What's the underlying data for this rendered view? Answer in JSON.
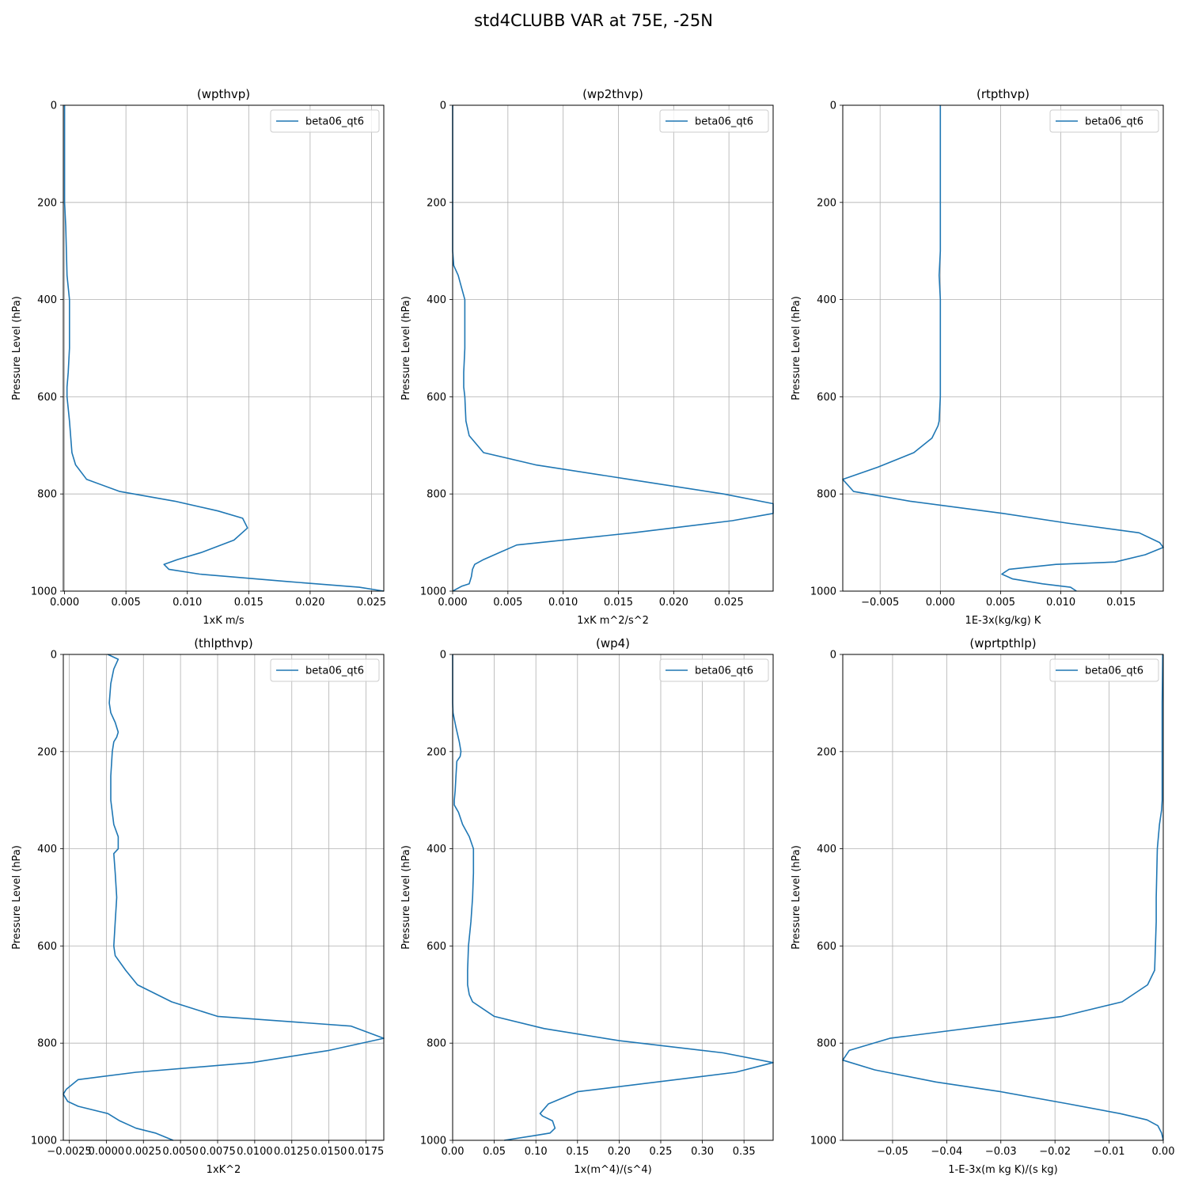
{
  "suptitle": "std4CLUBB VAR at 75E, -25N",
  "chart_data": [
    {
      "type": "line",
      "title": "(wpthvp)",
      "xlabel": "1xK m/s",
      "ylabel": "Pressure Level (hPa)",
      "xlim": [
        -0.0001,
        0.026
      ],
      "ylim": [
        1000,
        0
      ],
      "xticks": [
        0.0,
        0.005,
        0.01,
        0.015,
        0.02,
        0.025
      ],
      "xtick_labels": [
        "0.000",
        "0.005",
        "0.010",
        "0.015",
        "0.020",
        "0.025"
      ],
      "yticks": [
        0,
        200,
        400,
        600,
        800,
        1000
      ],
      "ytick_labels": [
        "0",
        "200",
        "400",
        "600",
        "800",
        "1000"
      ],
      "grid": true,
      "legend_position": "top-right",
      "series": [
        {
          "name": "beta06_qt6",
          "color": "#1f77b4",
          "x": [
            0.0,
            0.0,
            0.0,
            0.0,
            0.0,
            0.0001,
            0.0002,
            0.0004,
            0.0004,
            0.0004,
            0.0003,
            0.0002,
            0.0002,
            0.0004,
            0.0006,
            0.0009,
            0.0018,
            0.0045,
            0.009,
            0.0125,
            0.0145,
            0.0149,
            0.0138,
            0.0112,
            0.0092,
            0.0081,
            0.0085,
            0.011,
            0.018,
            0.024,
            0.026
          ],
          "y": [
            0,
            50,
            100,
            150,
            200,
            250,
            350,
            400,
            450,
            500,
            550,
            580,
            600,
            650,
            715,
            740,
            770,
            795,
            815,
            835,
            850,
            870,
            895,
            920,
            935,
            945,
            955,
            965,
            980,
            992,
            1000
          ]
        }
      ]
    },
    {
      "type": "line",
      "title": "(wp2thvp)",
      "xlabel": "1xK m^2/s^2",
      "ylabel": "Pressure Level (hPa)",
      "xlim": [
        0.0,
        0.029
      ],
      "ylim": [
        1000,
        0
      ],
      "xticks": [
        0.0,
        0.005,
        0.01,
        0.015,
        0.02,
        0.025
      ],
      "xtick_labels": [
        "0.000",
        "0.005",
        "0.010",
        "0.015",
        "0.020",
        "0.025"
      ],
      "yticks": [
        0,
        200,
        400,
        600,
        800,
        1000
      ],
      "ytick_labels": [
        "0",
        "200",
        "400",
        "600",
        "800",
        "1000"
      ],
      "grid": true,
      "legend_position": "top-right",
      "series": [
        {
          "name": "beta06_qt6",
          "color": "#1f77b4",
          "x": [
            0.0,
            0.0,
            0.0,
            0.0,
            0.0,
            0.0001,
            0.0005,
            0.0008,
            0.0011,
            0.0011,
            0.001,
            0.001,
            0.0011,
            0.0012,
            0.0015,
            0.0028,
            0.0075,
            0.016,
            0.0245,
            0.029,
            0.029,
            0.0253,
            0.0163,
            0.0058,
            0.0028,
            0.002,
            0.0018,
            0.0017,
            0.0015,
            0.0008,
            0.0
          ],
          "y": [
            0,
            100,
            200,
            250,
            300,
            330,
            350,
            375,
            400,
            500,
            550,
            580,
            600,
            650,
            680,
            715,
            740,
            770,
            800,
            820,
            840,
            855,
            880,
            905,
            935,
            945,
            955,
            970,
            985,
            990,
            1000
          ]
        }
      ]
    },
    {
      "type": "line",
      "title": "(rtpthvp)",
      "xlabel": "1E-3x(kg/kg) K",
      "ylabel": "Pressure Level (hPa)",
      "xlim": [
        -0.0081,
        0.0185
      ],
      "ylim": [
        1000,
        0
      ],
      "xticks": [
        -0.005,
        0.0,
        0.005,
        0.01,
        0.015
      ],
      "xtick_labels": [
        "−0.005",
        "0.000",
        "0.005",
        "0.010",
        "0.015"
      ],
      "yticks": [
        0,
        200,
        400,
        600,
        800,
        1000
      ],
      "ytick_labels": [
        "0",
        "200",
        "400",
        "600",
        "800",
        "1000"
      ],
      "grid": true,
      "legend_position": "top-right",
      "series": [
        {
          "name": "beta06_qt6",
          "color": "#1f77b4",
          "x": [
            0.0,
            0.0,
            0.0,
            0.0,
            -0.0001,
            0.0,
            0.0,
            0.0,
            -0.0001,
            -0.0002,
            -0.0007,
            -0.0022,
            -0.0052,
            -0.0081,
            -0.0072,
            -0.0025,
            0.0052,
            0.0105,
            0.0165,
            0.0182,
            0.0185,
            0.017,
            0.0145,
            0.0096,
            0.0057,
            0.0051,
            0.006,
            0.0085,
            0.0108,
            0.0113
          ],
          "y": [
            0,
            100,
            200,
            300,
            350,
            400,
            500,
            600,
            650,
            660,
            685,
            715,
            745,
            770,
            795,
            815,
            840,
            860,
            880,
            900,
            910,
            925,
            940,
            945,
            955,
            965,
            975,
            985,
            992,
            1000
          ]
        }
      ]
    },
    {
      "type": "line",
      "title": "(thlpthvp)",
      "xlabel": "1xK^2",
      "ylabel": "Pressure Level (hPa)",
      "xlim": [
        -0.0029,
        0.0187
      ],
      "ylim": [
        1000,
        0
      ],
      "xticks": [
        -0.0025,
        0.0,
        0.0025,
        0.005,
        0.0075,
        0.01,
        0.0125,
        0.015,
        0.0175
      ],
      "xtick_labels": [
        "−0.0025",
        "0.0000",
        "0.0025",
        "0.0050",
        "0.0075",
        "0.0100",
        "0.0125",
        "0.0150",
        "0.0175"
      ],
      "yticks": [
        0,
        200,
        400,
        600,
        800,
        1000
      ],
      "ytick_labels": [
        "0",
        "200",
        "400",
        "600",
        "800",
        "1000"
      ],
      "grid": true,
      "legend_position": "top-right",
      "series": [
        {
          "name": "beta06_qt6",
          "color": "#1f77b4",
          "x": [
            0.0001,
            0.0008,
            0.0005,
            0.0003,
            0.0002,
            0.0003,
            0.0006,
            0.0008,
            0.0007,
            0.0005,
            0.0004,
            0.0003,
            0.0003,
            0.0004,
            0.0005,
            0.0008,
            0.0008,
            0.0005,
            0.0006,
            0.0007,
            0.0006,
            0.0005,
            0.0006,
            0.0013,
            0.0021,
            0.0044,
            0.0075,
            0.0165,
            0.0187,
            0.015,
            0.0098,
            0.002,
            -0.0019,
            -0.0027,
            -0.0029,
            -0.0026,
            -0.0019,
            0.0001,
            0.0009,
            0.002,
            0.0033,
            0.0045
          ],
          "y": [
            0,
            10,
            30,
            60,
            100,
            120,
            140,
            160,
            170,
            180,
            200,
            250,
            300,
            325,
            350,
            375,
            400,
            410,
            450,
            500,
            550,
            600,
            620,
            650,
            680,
            715,
            745,
            765,
            790,
            815,
            840,
            860,
            875,
            895,
            905,
            920,
            930,
            945,
            960,
            975,
            985,
            1000
          ]
        }
      ]
    },
    {
      "type": "line",
      "title": "(wp4)",
      "xlabel": "1x(m^4)/(s^4)",
      "ylabel": "Pressure Level (hPa)",
      "xlim": [
        0.0,
        0.385
      ],
      "ylim": [
        1000,
        0
      ],
      "xticks": [
        0.0,
        0.05,
        0.1,
        0.15,
        0.2,
        0.25,
        0.3,
        0.35
      ],
      "xtick_labels": [
        "0.00",
        "0.05",
        "0.10",
        "0.15",
        "0.20",
        "0.25",
        "0.30",
        "0.35"
      ],
      "yticks": [
        0,
        200,
        400,
        600,
        800,
        1000
      ],
      "ytick_labels": [
        "0",
        "200",
        "400",
        "600",
        "800",
        "1000"
      ],
      "grid": true,
      "legend_position": "top-right",
      "series": [
        {
          "name": "beta06_qt6",
          "color": "#1f77b4",
          "x": [
            0.0,
            0.0,
            0.0005,
            0.004,
            0.008,
            0.01,
            0.009,
            0.005,
            0.004,
            0.003,
            0.002,
            0.002,
            0.007,
            0.012,
            0.02,
            0.025,
            0.025,
            0.024,
            0.022,
            0.019,
            0.018,
            0.018,
            0.02,
            0.024,
            0.05,
            0.11,
            0.2,
            0.325,
            0.385,
            0.34,
            0.15,
            0.115,
            0.105,
            0.108,
            0.12,
            0.123,
            0.117,
            0.099,
            0.062
          ],
          "y": [
            0,
            100,
            120,
            150,
            180,
            200,
            210,
            220,
            250,
            280,
            300,
            310,
            325,
            350,
            375,
            400,
            450,
            500,
            550,
            600,
            650,
            680,
            700,
            715,
            745,
            770,
            795,
            820,
            840,
            860,
            900,
            925,
            945,
            950,
            960,
            975,
            985,
            990,
            1000
          ]
        }
      ]
    },
    {
      "type": "line",
      "title": "(wprtpthlp)",
      "xlabel": "1-E-3x(m kg K)/(s kg)",
      "ylabel": "Pressure Level (hPa)",
      "xlim": [
        -0.0592,
        0.0
      ],
      "ylim": [
        1000,
        0
      ],
      "xticks": [
        -0.05,
        -0.04,
        -0.03,
        -0.02,
        -0.01,
        0.0
      ],
      "xtick_labels": [
        "−0.05",
        "−0.04",
        "−0.03",
        "−0.02",
        "−0.01",
        "0.00"
      ],
      "yticks": [
        0,
        200,
        400,
        600,
        800,
        1000
      ],
      "ytick_labels": [
        "0",
        "200",
        "400",
        "600",
        "800",
        "1000"
      ],
      "grid": true,
      "legend_position": "top-right",
      "series": [
        {
          "name": "beta06_qt6",
          "color": "#1f77b4",
          "x": [
            -0.0001,
            -0.0002,
            -0.0002,
            -0.0002,
            -0.0003,
            -0.0007,
            -0.0011,
            -0.0012,
            -0.0013,
            -0.0013,
            -0.0016,
            -0.0029,
            -0.0076,
            -0.0187,
            -0.0505,
            -0.058,
            -0.0592,
            -0.0533,
            -0.042,
            -0.03,
            -0.0175,
            -0.008,
            -0.003,
            -0.001,
            -0.0003,
            0.0
          ],
          "y": [
            0,
            100,
            200,
            300,
            320,
            350,
            400,
            450,
            500,
            550,
            650,
            680,
            715,
            745,
            790,
            815,
            835,
            855,
            880,
            900,
            925,
            945,
            958,
            970,
            985,
            1000
          ]
        }
      ]
    }
  ]
}
